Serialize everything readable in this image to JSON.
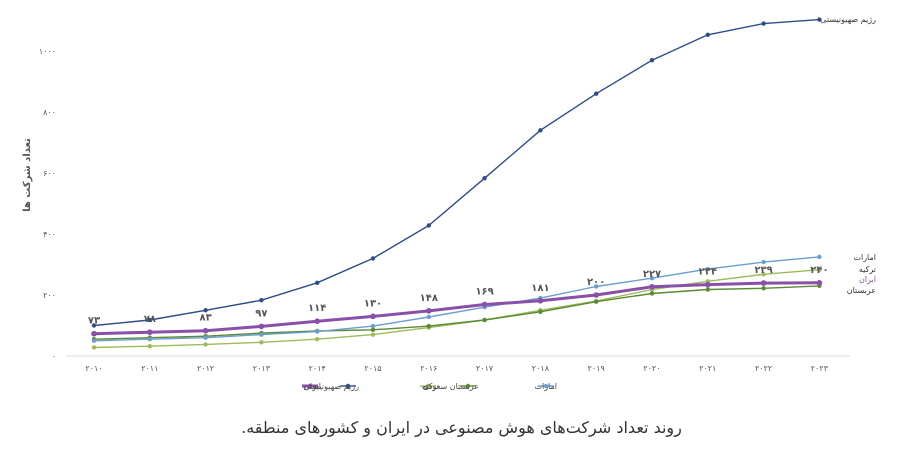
{
  "caption": "روند تعداد شرکت‌های هوش مصنوعی در ایران و کشورهای منطقه.",
  "chart_data": {
    "type": "line",
    "title": "",
    "xlabel": "",
    "ylabel": "تعداد شرکت ها",
    "x": [
      "۲۰۱۰",
      "۲۰۱۱",
      "۲۰۱۲",
      "۲۰۱۳",
      "۲۰۱۴",
      "۲۰۱۵",
      "۲۰۱۶",
      "۲۰۱۷",
      "۲۰۱۸",
      "۲۰۱۹",
      "۲۰۲۰",
      "۲۰۲۱",
      "۲۰۲۲",
      "۲۰۲۳"
    ],
    "ylim": [
      0,
      1100
    ],
    "yticks": [
      {
        "value": 0,
        "label": "۰"
      },
      {
        "value": 200,
        "label": "۲۰۰"
      },
      {
        "value": 400,
        "label": "۴۰۰"
      },
      {
        "value": 600,
        "label": "۶۰۰"
      },
      {
        "value": 800,
        "label": "۸۰۰"
      },
      {
        "value": 1000,
        "label": "۱۰۰۰"
      }
    ],
    "grid": false,
    "legend_position": "bottom",
    "series": [
      {
        "key": "iran",
        "name": "ایران",
        "color": "#8a4fa8",
        "values": [
          73,
          78,
          83,
          97,
          114,
          130,
          148,
          169,
          181,
          200,
          227,
          234,
          239,
          240
        ],
        "labels": [
          "۷۳",
          "۷۸",
          "۸۳",
          "۹۷",
          "۱۱۴",
          "۱۳۰",
          "۱۴۸",
          "۱۶۹",
          "۱۸۱",
          "۲۰۰",
          "۲۲۷",
          "۲۳۴",
          "۲۳۹",
          "۲۴۰"
        ],
        "end_label": "ایران"
      },
      {
        "key": "israel",
        "name": "رژیم صهیونیستی",
        "color": "#2e4c88",
        "values": [
          100,
          118,
          150,
          183,
          240,
          320,
          428,
          583,
          740,
          860,
          970,
          1053,
          1090,
          1103
        ],
        "end_label": "رژیم صهیونیستی"
      },
      {
        "key": "turkey",
        "name": "ترکیه",
        "color": "#9dbb5a",
        "values": [
          28,
          32,
          38,
          45,
          55,
          70,
          93,
          118,
          150,
          180,
          218,
          245,
          268,
          283
        ],
        "end_label": "ترکیه"
      },
      {
        "key": "saudi",
        "name": "عربستان سعودی",
        "color": "#5a8a32",
        "values": [
          55,
          60,
          65,
          75,
          82,
          86,
          98,
          118,
          145,
          178,
          205,
          218,
          222,
          230
        ],
        "end_label": "عربستان"
      },
      {
        "key": "uae",
        "name": "امارات",
        "color": "#6a9ed0",
        "values": [
          50,
          55,
          60,
          70,
          80,
          98,
          128,
          160,
          190,
          228,
          255,
          285,
          308,
          325
        ],
        "end_label": "امارات"
      }
    ]
  }
}
